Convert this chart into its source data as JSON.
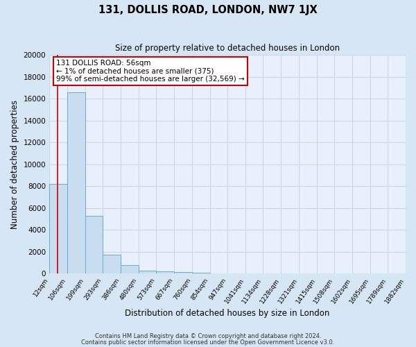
{
  "title": "131, DOLLIS ROAD, LONDON, NW7 1JX",
  "subtitle": "Size of property relative to detached houses in London",
  "xlabel": "Distribution of detached houses by size in London",
  "ylabel": "Number of detached properties",
  "bar_color": "#c8ddf0",
  "bar_edge_color": "#6aaad4",
  "background_color": "#d6e6f4",
  "plot_bg_color": "#e8f1fb",
  "grid_color": "#c8d8e8",
  "red_line_x": 56,
  "annotation_text_line1": "131 DOLLIS ROAD: 56sqm",
  "annotation_text_line2": "← 1% of detached houses are smaller (375)",
  "annotation_text_line3": "99% of semi-detached houses are larger (32,569) →",
  "annotation_box_color": "#ffffff",
  "annotation_border_color": "#cc0000",
  "footnote1": "Contains HM Land Registry data © Crown copyright and database right 2024.",
  "footnote2": "Contains public sector information licensed under the Open Government Licence v3.0.",
  "bin_edges": [
    12,
    106,
    199,
    293,
    386,
    480,
    573,
    667,
    760,
    854,
    947,
    1041,
    1134,
    1228,
    1321,
    1415,
    1508,
    1602,
    1695,
    1789,
    1882
  ],
  "bin_counts": [
    8200,
    16600,
    5300,
    1750,
    800,
    300,
    200,
    150,
    100,
    50,
    0,
    0,
    0,
    0,
    0,
    0,
    0,
    0,
    0,
    0
  ],
  "ylim": [
    0,
    20000
  ],
  "yticks": [
    0,
    2000,
    4000,
    6000,
    8000,
    10000,
    12000,
    14000,
    16000,
    18000,
    20000
  ],
  "tick_labels": [
    "12sqm",
    "106sqm",
    "199sqm",
    "293sqm",
    "386sqm",
    "480sqm",
    "573sqm",
    "667sqm",
    "760sqm",
    "854sqm",
    "947sqm",
    "1041sqm",
    "1134sqm",
    "1228sqm",
    "1321sqm",
    "1415sqm",
    "1508sqm",
    "1602sqm",
    "1695sqm",
    "1789sqm",
    "1882sqm"
  ]
}
